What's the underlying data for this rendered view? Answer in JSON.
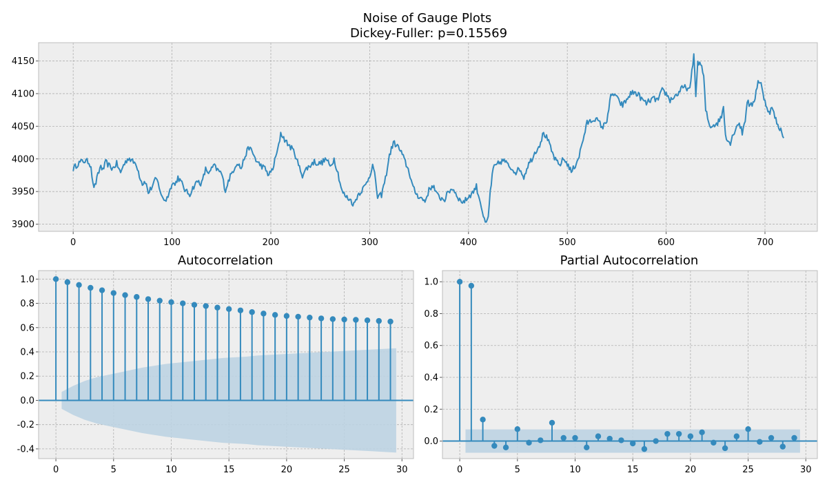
{
  "figure": {
    "title_line1": "Noise of Gauge Plots",
    "title_line2": "Dickey-Fuller: p=0.15569"
  },
  "colors": {
    "line": "#348abd",
    "band": "#bcd3e2",
    "axes_bg": "#eeeeee",
    "grid": "#b0b0b0",
    "frame": "#bcbcbc"
  },
  "chart_data": [
    {
      "type": "line",
      "name": "noise",
      "title": "",
      "xlim": [
        -35,
        753
      ],
      "ylim": [
        3889,
        4178
      ],
      "xticks": [
        0,
        100,
        200,
        300,
        400,
        500,
        600,
        700
      ],
      "yticks": [
        3900,
        3950,
        4000,
        4050,
        4100,
        4150
      ],
      "grid": true,
      "n_points": 720,
      "anchors": [
        [
          0,
          3985
        ],
        [
          5,
          3993
        ],
        [
          10,
          3997
        ],
        [
          15,
          3996
        ],
        [
          18,
          3990
        ],
        [
          20,
          3960
        ],
        [
          22,
          3958
        ],
        [
          25,
          3975
        ],
        [
          28,
          3990
        ],
        [
          30,
          3982
        ],
        [
          33,
          3995
        ],
        [
          36,
          3990
        ],
        [
          40,
          3985
        ],
        [
          44,
          3993
        ],
        [
          48,
          3978
        ],
        [
          50,
          3988
        ],
        [
          53,
          3995
        ],
        [
          56,
          4002
        ],
        [
          60,
          3996
        ],
        [
          64,
          3992
        ],
        [
          67,
          3975
        ],
        [
          70,
          3962
        ],
        [
          73,
          3966
        ],
        [
          76,
          3948
        ],
        [
          80,
          3958
        ],
        [
          84,
          3970
        ],
        [
          87,
          3958
        ],
        [
          90,
          3940
        ],
        [
          94,
          3937
        ],
        [
          98,
          3952
        ],
        [
          100,
          3965
        ],
        [
          103,
          3960
        ],
        [
          106,
          3972
        ],
        [
          110,
          3962
        ],
        [
          114,
          3950
        ],
        [
          118,
          3946
        ],
        [
          122,
          3958
        ],
        [
          126,
          3966
        ],
        [
          130,
          3962
        ],
        [
          134,
          3984
        ],
        [
          138,
          3978
        ],
        [
          142,
          3990
        ],
        [
          146,
          3983
        ],
        [
          150,
          3978
        ],
        [
          154,
          3952
        ],
        [
          158,
          3970
        ],
        [
          162,
          3983
        ],
        [
          166,
          3995
        ],
        [
          170,
          3985
        ],
        [
          174,
          4005
        ],
        [
          178,
          4018
        ],
        [
          182,
          4008
        ],
        [
          186,
          3995
        ],
        [
          190,
          3990
        ],
        [
          194,
          3985
        ],
        [
          198,
          3975
        ],
        [
          202,
          3985
        ],
        [
          205,
          4003
        ],
        [
          208,
          4020
        ],
        [
          210,
          4040
        ],
        [
          213,
          4032
        ],
        [
          216,
          4025
        ],
        [
          220,
          4018
        ],
        [
          224,
          4010
        ],
        [
          228,
          3990
        ],
        [
          232,
          3975
        ],
        [
          236,
          3985
        ],
        [
          240,
          3990
        ],
        [
          244,
          3996
        ],
        [
          248,
          3992
        ],
        [
          252,
          3995
        ],
        [
          256,
          4000
        ],
        [
          260,
          3988
        ],
        [
          264,
          4000
        ],
        [
          268,
          3978
        ],
        [
          272,
          3950
        ],
        [
          276,
          3942
        ],
        [
          280,
          3938
        ],
        [
          284,
          3930
        ],
        [
          288,
          3945
        ],
        [
          292,
          3952
        ],
        [
          296,
          3960
        ],
        [
          300,
          3975
        ],
        [
          303,
          3990
        ],
        [
          306,
          3968
        ],
        [
          308,
          3940
        ],
        [
          312,
          3945
        ],
        [
          316,
          3970
        ],
        [
          320,
          4005
        ],
        [
          324,
          4025
        ],
        [
          328,
          4020
        ],
        [
          332,
          4010
        ],
        [
          336,
          3995
        ],
        [
          340,
          3980
        ],
        [
          344,
          3955
        ],
        [
          348,
          3945
        ],
        [
          352,
          3940
        ],
        [
          356,
          3935
        ],
        [
          360,
          3952
        ],
        [
          364,
          3960
        ],
        [
          368,
          3945
        ],
        [
          372,
          3940
        ],
        [
          376,
          3938
        ],
        [
          380,
          3950
        ],
        [
          384,
          3955
        ],
        [
          388,
          3945
        ],
        [
          392,
          3935
        ],
        [
          396,
          3935
        ],
        [
          400,
          3942
        ],
        [
          404,
          3948
        ],
        [
          408,
          3958
        ],
        [
          410,
          3945
        ],
        [
          412,
          3935
        ],
        [
          414,
          3920
        ],
        [
          416,
          3905
        ],
        [
          418,
          3900
        ],
        [
          420,
          3910
        ],
        [
          422,
          3950
        ],
        [
          425,
          3985
        ],
        [
          428,
          3990
        ],
        [
          432,
          3995
        ],
        [
          436,
          3998
        ],
        [
          440,
          3990
        ],
        [
          444,
          3985
        ],
        [
          448,
          3980
        ],
        [
          452,
          3985
        ],
        [
          456,
          3972
        ],
        [
          460,
          3990
        ],
        [
          464,
          4000
        ],
        [
          468,
          4012
        ],
        [
          472,
          4022
        ],
        [
          476,
          4040
        ],
        [
          480,
          4030
        ],
        [
          484,
          4012
        ],
        [
          488,
          3998
        ],
        [
          492,
          3990
        ],
        [
          496,
          4000
        ],
        [
          500,
          3993
        ],
        [
          504,
          3980
        ],
        [
          508,
          3990
        ],
        [
          512,
          4005
        ],
        [
          516,
          4030
        ],
        [
          520,
          4055
        ],
        [
          524,
          4058
        ],
        [
          528,
          4062
        ],
        [
          532,
          4056
        ],
        [
          536,
          4048
        ],
        [
          540,
          4060
        ],
        [
          544,
          4095
        ],
        [
          548,
          4100
        ],
        [
          552,
          4088
        ],
        [
          556,
          4082
        ],
        [
          560,
          4090
        ],
        [
          564,
          4100
        ],
        [
          568,
          4102
        ],
        [
          572,
          4098
        ],
        [
          576,
          4090
        ],
        [
          580,
          4085
        ],
        [
          584,
          4090
        ],
        [
          588,
          4092
        ],
        [
          592,
          4090
        ],
        [
          596,
          4105
        ],
        [
          600,
          4100
        ],
        [
          604,
          4090
        ],
        [
          608,
          4095
        ],
        [
          612,
          4100
        ],
        [
          616,
          4108
        ],
        [
          620,
          4110
        ],
        [
          624,
          4105
        ],
        [
          628,
          4160
        ],
        [
          630,
          4100
        ],
        [
          632,
          4145
        ],
        [
          634,
          4148
        ],
        [
          636,
          4140
        ],
        [
          638,
          4125
        ],
        [
          640,
          4075
        ],
        [
          644,
          4050
        ],
        [
          648,
          4052
        ],
        [
          652,
          4055
        ],
        [
          656,
          4065
        ],
        [
          658,
          4080
        ],
        [
          660,
          4040
        ],
        [
          662,
          4028
        ],
        [
          665,
          4025
        ],
        [
          668,
          4038
        ],
        [
          671,
          4050
        ],
        [
          674,
          4055
        ],
        [
          677,
          4040
        ],
        [
          680,
          4060
        ],
        [
          682,
          4090
        ],
        [
          685,
          4080
        ],
        [
          688,
          4085
        ],
        [
          690,
          4095
        ],
        [
          693,
          4120
        ],
        [
          696,
          4115
        ],
        [
          698,
          4098
        ],
        [
          701,
          4085
        ],
        [
          704,
          4070
        ],
        [
          707,
          4078
        ],
        [
          710,
          4065
        ],
        [
          713,
          4050
        ],
        [
          716,
          4045
        ],
        [
          719,
          4035
        ]
      ]
    },
    {
      "type": "stem",
      "title": "Autocorrelation",
      "xlim": [
        -1.5,
        31
      ],
      "ylim": [
        -0.48,
        1.07
      ],
      "xticks": [
        0,
        5,
        10,
        15,
        20,
        25,
        30
      ],
      "yticks": [
        -0.4,
        -0.2,
        0.0,
        0.2,
        0.4,
        0.6,
        0.8,
        1.0
      ],
      "grid": true,
      "lags": [
        0,
        1,
        2,
        3,
        4,
        5,
        6,
        7,
        8,
        9,
        10,
        11,
        12,
        13,
        14,
        15,
        16,
        17,
        18,
        19,
        20,
        21,
        22,
        23,
        24,
        25,
        26,
        27,
        28,
        29
      ],
      "values": [
        1.0,
        0.975,
        0.952,
        0.928,
        0.908,
        0.885,
        0.868,
        0.853,
        0.835,
        0.822,
        0.81,
        0.8,
        0.788,
        0.778,
        0.765,
        0.753,
        0.742,
        0.728,
        0.716,
        0.705,
        0.696,
        0.69,
        0.683,
        0.676,
        0.67,
        0.667,
        0.664,
        0.66,
        0.655,
        0.65
      ],
      "band_x": [
        0.5,
        29.5
      ],
      "band_upper": [
        0.07,
        0.12,
        0.16,
        0.19,
        0.21,
        0.23,
        0.25,
        0.27,
        0.285,
        0.3,
        0.31,
        0.32,
        0.33,
        0.34,
        0.35,
        0.355,
        0.36,
        0.37,
        0.375,
        0.38,
        0.385,
        0.39,
        0.395,
        0.4,
        0.405,
        0.41,
        0.415,
        0.42,
        0.425,
        0.43
      ]
    },
    {
      "type": "stem",
      "title": "Partial Autocorrelation",
      "xlim": [
        -1.5,
        31
      ],
      "ylim": [
        -0.11,
        1.07
      ],
      "xticks": [
        0,
        5,
        10,
        15,
        20,
        25,
        30
      ],
      "yticks": [
        0.0,
        0.2,
        0.4,
        0.6,
        0.8,
        1.0
      ],
      "grid": true,
      "lags": [
        0,
        1,
        2,
        3,
        4,
        5,
        6,
        7,
        8,
        9,
        10,
        11,
        12,
        13,
        14,
        15,
        16,
        17,
        18,
        19,
        20,
        21,
        22,
        23,
        24,
        25,
        26,
        27,
        28,
        29
      ],
      "values": [
        1.0,
        0.975,
        0.135,
        -0.03,
        -0.04,
        0.075,
        -0.01,
        0.005,
        0.115,
        0.02,
        0.02,
        -0.04,
        0.03,
        0.015,
        0.005,
        -0.015,
        -0.05,
        0.0,
        0.045,
        0.045,
        0.03,
        0.055,
        -0.01,
        -0.045,
        0.03,
        0.075,
        -0.005,
        0.02,
        -0.035,
        0.02
      ],
      "band_x": [
        0.5,
        29.5
      ],
      "band_half": 0.073
    }
  ]
}
